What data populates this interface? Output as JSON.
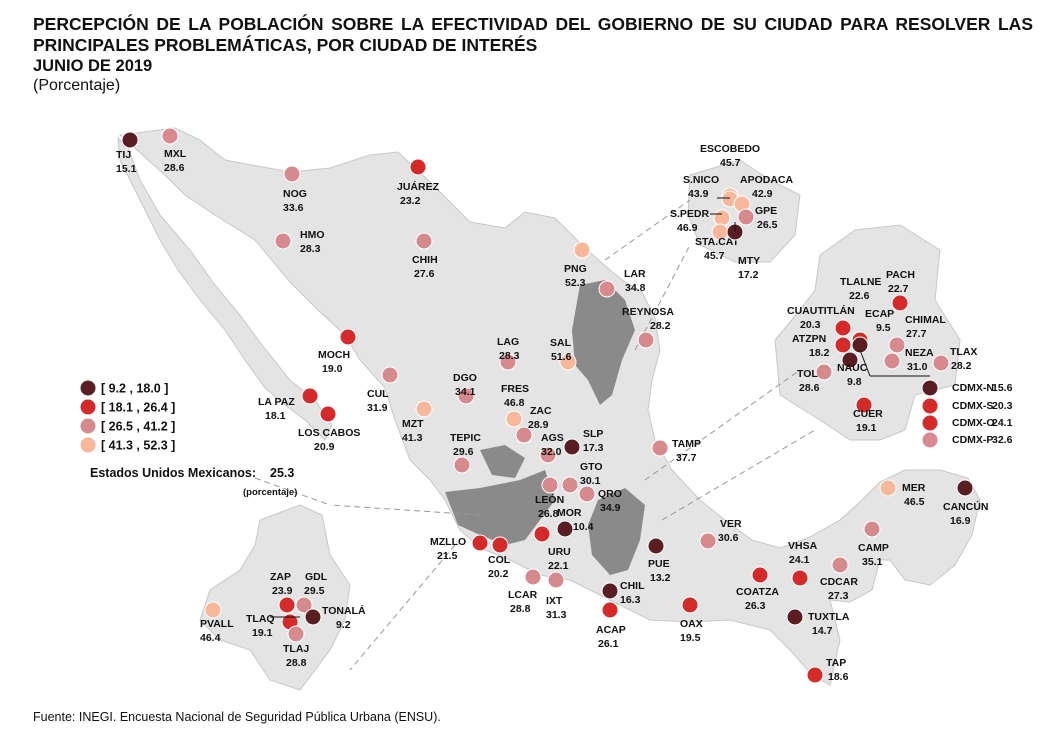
{
  "header": {
    "title": "PERCEPCIÓN DE LA POBLACIÓN SOBRE LA EFECTIVIDAD DEL GOBIERNO DE SU CIUDAD PARA RESOLVER LAS PRINCIPALES PROBLEMÁTICAS, POR CIUDAD DE INTERÉS",
    "date": "JUNIO DE 2019",
    "unit": "(Porcentaje)"
  },
  "colors": {
    "c1": "#5a1e22",
    "c2": "#d42a2a",
    "c3": "#d78a8e",
    "c4": "#f7b79b",
    "land": "#e4e4e4",
    "shaded": "#8a8a8a"
  },
  "legend": [
    {
      "label": "[   9.2 , 18.0 ]",
      "color": "c1"
    },
    {
      "label": "[ 18.1 , 26.4 ]",
      "color": "c2"
    },
    {
      "label": "[ 26.5 , 41.2 ]",
      "color": "c3"
    },
    {
      "label": "[ 41.3 , 52.3 ]",
      "color": "c4"
    }
  ],
  "national": {
    "label": "Estados Unidos Mexicanos:",
    "value": "25.3",
    "unit": "(porcentaje)"
  },
  "cities": [
    {
      "name": "TIJ",
      "value": "15.1",
      "color": "c1"
    },
    {
      "name": "MXL",
      "value": "28.6",
      "color": "c3"
    },
    {
      "name": "NOG",
      "value": "33.6",
      "color": "c3"
    },
    {
      "name": "JUÁREZ",
      "value": "23.2",
      "color": "c2"
    },
    {
      "name": "HMO",
      "value": "28.3",
      "color": "c3"
    },
    {
      "name": "CHIH",
      "value": "27.6",
      "color": "c3"
    },
    {
      "name": "MOCH",
      "value": "19.0",
      "color": "c2"
    },
    {
      "name": "LA PAZ",
      "value": "18.1",
      "color": "c2"
    },
    {
      "name": "LOS CABOS",
      "value": "20.9",
      "color": "c2"
    },
    {
      "name": "CUL",
      "value": "31.9",
      "color": "c3"
    },
    {
      "name": "MZT",
      "value": "41.3",
      "color": "c4"
    },
    {
      "name": "DGO",
      "value": "34.1",
      "color": "c3"
    },
    {
      "name": "LAG",
      "value": "28.3",
      "color": "c3"
    },
    {
      "name": "SAL",
      "value": "51.6",
      "color": "c4"
    },
    {
      "name": "PNG",
      "value": "52.3",
      "color": "c4"
    },
    {
      "name": "LAR",
      "value": "34.8",
      "color": "c3"
    },
    {
      "name": "REYNOSA",
      "value": "28.2",
      "color": "c3"
    },
    {
      "name": "FRES",
      "value": "46.8",
      "color": "c4"
    },
    {
      "name": "ZAC",
      "value": "28.9",
      "color": "c3"
    },
    {
      "name": "TEPIC",
      "value": "29.6",
      "color": "c3"
    },
    {
      "name": "AGS",
      "value": "32.0",
      "color": "c3"
    },
    {
      "name": "SLP",
      "value": "17.3",
      "color": "c1"
    },
    {
      "name": "TAMP",
      "value": "37.7",
      "color": "c3"
    },
    {
      "name": "GTO",
      "value": "30.1",
      "color": "c3"
    },
    {
      "name": "LEÓN",
      "value": "26.8",
      "color": "c3"
    },
    {
      "name": "QRO",
      "value": "34.9",
      "color": "c3"
    },
    {
      "name": "MOR",
      "value": "10.4",
      "color": "c1"
    },
    {
      "name": "MZLLO",
      "value": "21.5",
      "color": "c2"
    },
    {
      "name": "COL",
      "value": "20.2",
      "color": "c2"
    },
    {
      "name": "URU",
      "value": "22.1",
      "color": "c2"
    },
    {
      "name": "LCAR",
      "value": "28.8",
      "color": "c3"
    },
    {
      "name": "IXT",
      "value": "31.3",
      "color": "c3"
    },
    {
      "name": "CHIL",
      "value": "16.3",
      "color": "c1"
    },
    {
      "name": "ACAP",
      "value": "26.1",
      "color": "c2"
    },
    {
      "name": "PUE",
      "value": "13.2",
      "color": "c1"
    },
    {
      "name": "VER",
      "value": "30.6",
      "color": "c3"
    },
    {
      "name": "OAX",
      "value": "19.5",
      "color": "c2"
    },
    {
      "name": "COATZA",
      "value": "26.3",
      "color": "c2"
    },
    {
      "name": "VHSA",
      "value": "24.1",
      "color": "c2"
    },
    {
      "name": "CDCAR",
      "value": "27.3",
      "color": "c3"
    },
    {
      "name": "CAMP",
      "value": "35.1",
      "color": "c3"
    },
    {
      "name": "MER",
      "value": "46.5",
      "color": "c4"
    },
    {
      "name": "CANCÚN",
      "value": "16.9",
      "color": "c1"
    },
    {
      "name": "TUXTLA",
      "value": "14.7",
      "color": "c1"
    },
    {
      "name": "TAP",
      "value": "18.6",
      "color": "c2"
    }
  ],
  "inset_monterrey": [
    {
      "name": "ESCOBEDO",
      "value": "45.7",
      "color": "c4"
    },
    {
      "name": "S.NICO",
      "value": "43.9",
      "color": "c4"
    },
    {
      "name": "APODACA",
      "value": "42.9",
      "color": "c4"
    },
    {
      "name": "S.PEDR",
      "value": "46.9",
      "color": "c4"
    },
    {
      "name": "GPE",
      "value": "26.5",
      "color": "c3"
    },
    {
      "name": "STA.CAT",
      "value": "45.7",
      "color": "c4"
    },
    {
      "name": "MTY",
      "value": "17.2",
      "color": "c1"
    }
  ],
  "inset_cdmx": [
    {
      "name": "PACH",
      "value": "22.7",
      "color": "c2"
    },
    {
      "name": "TLALNE",
      "value": "22.6",
      "color": "c2"
    },
    {
      "name": "CUAUTITLÁN",
      "value": "20.3",
      "color": "c2"
    },
    {
      "name": "ECAP",
      "value": "9.5",
      "color": "c1"
    },
    {
      "name": "CHIMAL",
      "value": "27.7",
      "color": "c3"
    },
    {
      "name": "ATZPN",
      "value": "18.2",
      "color": "c2"
    },
    {
      "name": "NAUC",
      "value": "9.8",
      "color": "c1"
    },
    {
      "name": "NEZA",
      "value": "31.0",
      "color": "c3"
    },
    {
      "name": "TLAX",
      "value": "28.2",
      "color": "c3"
    },
    {
      "name": "TOL",
      "value": "28.6",
      "color": "c3"
    },
    {
      "name": "CUER",
      "value": "19.1",
      "color": "c2"
    },
    {
      "name": "CDMX-N",
      "value": "15.6",
      "color": "c1"
    },
    {
      "name": "CDMX-S",
      "value": "20.3",
      "color": "c2"
    },
    {
      "name": "CDMX-O",
      "value": "24.1",
      "color": "c2"
    },
    {
      "name": "CDMX-P",
      "value": "32.6",
      "color": "c3"
    }
  ],
  "inset_gdl": [
    {
      "name": "PVALL",
      "value": "46.4",
      "color": "c4"
    },
    {
      "name": "ZAP",
      "value": "23.9",
      "color": "c2"
    },
    {
      "name": "GDL",
      "value": "29.5",
      "color": "c3"
    },
    {
      "name": "TLAQ",
      "value": "19.1",
      "color": "c2"
    },
    {
      "name": "TONALÁ",
      "value": "9.2",
      "color": "c1"
    },
    {
      "name": "TLAJ",
      "value": "28.8",
      "color": "c3"
    }
  ],
  "source": "Fuente: INEGI. Encuesta Nacional de Seguridad Pública Urbana (ENSU)."
}
